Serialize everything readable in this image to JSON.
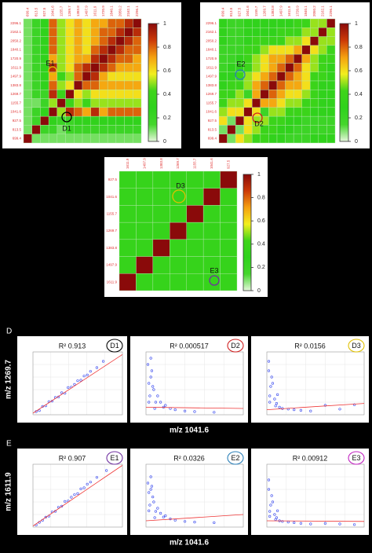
{
  "colorscale": [
    "#e6f7dc",
    "#44d62c",
    "#2fd21c",
    "#3ed41a",
    "#f2ef1e",
    "#f5a010",
    "#cc3a08",
    "#8a0a0a"
  ],
  "chart_data": [
    {
      "type": "heatmap",
      "row_labels": [
        "2296.1",
        "2162.1",
        "2050.2",
        "1840.1",
        "1720.9",
        "1611.9",
        "1497.9",
        "1383.8",
        "1269.7",
        "1155.7",
        "1041.6",
        "927.5",
        "813.5",
        "699.4"
      ],
      "col_labels": [
        "699.4",
        "813.5",
        "927.5",
        "1041.6",
        "1155.7",
        "1269.7",
        "1383.8",
        "1497.9",
        "1611.9",
        "1720.9",
        "1840.1",
        "2050.2",
        "2162.1",
        "2296.1"
      ],
      "values": [
        [
          0.1,
          0.2,
          0.3,
          0.8,
          0.5,
          0.6,
          0.7,
          0.6,
          0.7,
          0.7,
          0.8,
          0.8,
          0.9,
          1
        ],
        [
          0.1,
          0.2,
          0.3,
          0.8,
          0.5,
          0.6,
          0.7,
          0.6,
          0.7,
          0.8,
          0.8,
          0.9,
          1,
          0.9
        ],
        [
          0.1,
          0.2,
          0.3,
          0.8,
          0.5,
          0.6,
          0.7,
          0.6,
          0.7,
          0.8,
          0.9,
          1,
          0.9,
          0.8
        ],
        [
          0.1,
          0.2,
          0.3,
          0.8,
          0.5,
          0.6,
          0.7,
          0.6,
          0.8,
          0.9,
          1,
          0.9,
          0.8,
          0.8
        ],
        [
          0.1,
          0.2,
          0.3,
          0.7,
          0.5,
          0.6,
          0.7,
          0.7,
          0.9,
          1,
          0.9,
          0.8,
          0.8,
          0.7
        ],
        [
          0.1,
          0.2,
          0.3,
          0.9,
          0.5,
          0.6,
          0.8,
          0.9,
          1,
          0.9,
          0.8,
          0.7,
          0.7,
          0.7
        ],
        [
          0.1,
          0.2,
          0.3,
          0.7,
          0.4,
          0.5,
          0.8,
          1,
          0.9,
          0.7,
          0.6,
          0.6,
          0.6,
          0.6
        ],
        [
          0.1,
          0.2,
          0.3,
          0.8,
          0.5,
          0.6,
          1,
          0.8,
          0.8,
          0.7,
          0.7,
          0.7,
          0.7,
          0.7
        ],
        [
          0.1,
          0.2,
          0.2,
          0.9,
          0.4,
          1,
          0.6,
          0.5,
          0.6,
          0.6,
          0.6,
          0.6,
          0.6,
          0.6
        ],
        [
          0.1,
          0.1,
          0.2,
          0.5,
          1,
          0.4,
          0.5,
          0.4,
          0.5,
          0.5,
          0.5,
          0.5,
          0.5,
          0.5
        ],
        [
          0.1,
          0.2,
          0.3,
          1,
          0.5,
          0.9,
          0.8,
          0.7,
          0.9,
          0.7,
          0.8,
          0.8,
          0.8,
          0.8
        ],
        [
          0.1,
          0.2,
          1,
          0.3,
          0.2,
          0.2,
          0.3,
          0.3,
          0.3,
          0.3,
          0.3,
          0.3,
          0.3,
          0.3
        ],
        [
          0.1,
          1,
          0.2,
          0.2,
          0.1,
          0.2,
          0.2,
          0.2,
          0.2,
          0.2,
          0.2,
          0.2,
          0.2,
          0.2
        ],
        [
          1,
          0.1,
          0.1,
          0.1,
          0.1,
          0.1,
          0.1,
          0.1,
          0.1,
          0.1,
          0.1,
          0.1,
          0.1,
          0.1
        ]
      ],
      "zlim": [
        0,
        1
      ],
      "colorbar_ticks": [
        0,
        0.2,
        0.4,
        0.6,
        0.8,
        1
      ],
      "annotations": [
        {
          "text": "E1",
          "color": "#e0c000"
        },
        {
          "text": "D1",
          "color": "#000000"
        }
      ]
    },
    {
      "type": "heatmap",
      "row_labels": [
        "2296.1",
        "2162.1",
        "2050.2",
        "1840.1",
        "1720.9",
        "1611.9",
        "1497.9",
        "1383.8",
        "1269.7",
        "1155.7",
        "1041.6",
        "927.5",
        "813.5",
        "699.4"
      ],
      "col_labels": [
        "699.4",
        "813.5",
        "927.5",
        "1041.6",
        "1155.7",
        "1269.7",
        "1383.8",
        "1497.9",
        "1611.9",
        "1720.9",
        "1840.1",
        "2050.2",
        "2162.1",
        "2296.1"
      ],
      "values": [
        [
          0.3,
          0.2,
          0.2,
          0.3,
          0.3,
          0.3,
          0.3,
          0.3,
          0.3,
          0.4,
          0.4,
          0.5,
          0.5,
          1
        ],
        [
          0.3,
          0.2,
          0.2,
          0.3,
          0.3,
          0.3,
          0.3,
          0.4,
          0.4,
          0.4,
          0.5,
          0.5,
          1,
          0.5
        ],
        [
          0.3,
          0.2,
          0.2,
          0.3,
          0.4,
          0.4,
          0.4,
          0.4,
          0.5,
          0.5,
          0.6,
          1,
          0.5,
          0.5
        ],
        [
          0.2,
          0.2,
          0.2,
          0.4,
          0.4,
          0.5,
          0.6,
          0.6,
          0.6,
          0.7,
          1,
          0.6,
          0.5,
          0.4
        ],
        [
          0.2,
          0.2,
          0.3,
          0.4,
          0.5,
          0.6,
          0.7,
          0.7,
          0.8,
          1,
          0.7,
          0.5,
          0.4,
          0.4
        ],
        [
          0.2,
          0.3,
          0.3,
          0.4,
          0.5,
          0.6,
          0.7,
          0.8,
          1,
          0.8,
          0.6,
          0.5,
          0.4,
          0.3
        ],
        [
          0.3,
          0.3,
          0.4,
          0.5,
          0.6,
          0.7,
          0.8,
          1,
          0.8,
          0.7,
          0.6,
          0.4,
          0.4,
          0.3
        ],
        [
          0.3,
          0.4,
          0.4,
          0.5,
          0.7,
          0.8,
          1,
          0.8,
          0.7,
          0.7,
          0.6,
          0.4,
          0.3,
          0.3
        ],
        [
          0.4,
          0.4,
          0.5,
          0.2,
          0.7,
          1,
          0.8,
          0.7,
          0.6,
          0.6,
          0.5,
          0.4,
          0.3,
          0.3
        ],
        [
          0.4,
          0.5,
          0.5,
          0.6,
          1,
          0.7,
          0.7,
          0.6,
          0.5,
          0.5,
          0.4,
          0.4,
          0.3,
          0.3
        ],
        [
          0.5,
          0.6,
          0.6,
          1,
          0.6,
          0.2,
          0.5,
          0.5,
          0.4,
          0.4,
          0.4,
          0.3,
          0.3,
          0.3
        ],
        [
          0.6,
          0.1,
          1,
          0.6,
          0.5,
          0.5,
          0.4,
          0.4,
          0.3,
          0.3,
          0.2,
          0.2,
          0.2,
          0.2
        ],
        [
          0.1,
          1,
          0.1,
          0.6,
          0.5,
          0.4,
          0.4,
          0.3,
          0.3,
          0.2,
          0.2,
          0.2,
          0.2,
          0.2
        ],
        [
          1,
          0.1,
          0.6,
          0.5,
          0.4,
          0.4,
          0.3,
          0.3,
          0.2,
          0.2,
          0.2,
          0.3,
          0.3,
          0.3
        ]
      ],
      "zlim": [
        0,
        1
      ],
      "colorbar_ticks": [
        0,
        0.2,
        0.4,
        0.6,
        0.8,
        1
      ],
      "annotations": [
        {
          "text": "E2",
          "color": "#2a7fb8"
        },
        {
          "text": "D2",
          "color": "#d02020"
        }
      ]
    },
    {
      "type": "heatmap",
      "row_labels": [
        "927.5",
        "1041.6",
        "1155.7",
        "1269.7",
        "1383.8",
        "1497.9",
        "1611.9"
      ],
      "col_labels": [
        "1611.9",
        "1497.9",
        "1383.8",
        "1269.7",
        "1155.7",
        "1041.6",
        "927.5"
      ],
      "values": [
        [
          0.35,
          0.35,
          0.35,
          0.35,
          0.35,
          0.35,
          1
        ],
        [
          0.35,
          0.35,
          0.35,
          0.35,
          0.35,
          1,
          0.35
        ],
        [
          0.35,
          0.35,
          0.35,
          0.35,
          1,
          0.35,
          0.35
        ],
        [
          0.35,
          0.35,
          0.35,
          1,
          0.35,
          0.35,
          0.35
        ],
        [
          0.35,
          0.35,
          1,
          0.35,
          0.35,
          0.35,
          0.35
        ],
        [
          0.35,
          1,
          0.35,
          0.35,
          0.35,
          0.35,
          0.35
        ],
        [
          1,
          0.35,
          0.35,
          0.35,
          0.35,
          0.35,
          0.35
        ]
      ],
      "zlim": [
        0,
        1
      ],
      "colorbar_ticks": [
        0,
        0.2,
        0.4,
        0.6,
        0.8,
        1
      ],
      "annotations": [
        {
          "text": "D3",
          "color": "#e0c000"
        },
        {
          "text": "E3",
          "color": "#7030a0"
        }
      ]
    },
    {
      "type": "scatter",
      "panel_label": "D",
      "ylabel": "m/z 1269.7",
      "annotation": "R² 0.913",
      "badge": "D1",
      "badge_color": "#000000",
      "x": [
        0.5,
        1,
        1.5,
        2,
        2.5,
        3,
        3.5,
        4,
        4.5,
        5,
        5.5,
        6,
        6.5,
        7,
        7.5,
        8,
        8.5,
        9,
        10,
        11
      ],
      "y": [
        0.6,
        0.8,
        1.6,
        1.7,
        2.5,
        2.6,
        3.3,
        3.4,
        4.2,
        4.1,
        5.2,
        5.3,
        5.8,
        6.5,
        6.6,
        7.4,
        7.6,
        8.3,
        9.0,
        10.2
      ],
      "fit_x": [
        0,
        14
      ],
      "fit_y": [
        0.3,
        11.5
      ],
      "xlim": [
        0,
        14
      ],
      "ylim": [
        0,
        12
      ],
      "color": "#3344ee",
      "fit_color": "#ee3333"
    },
    {
      "type": "scatter",
      "xlabel": "m/z 1041.6",
      "annotation": "R² 0.000517",
      "badge": "D2",
      "badge_color": "#d02020",
      "x": [
        0.2,
        0.3,
        0.5,
        0.4,
        0.8,
        1,
        1.2,
        0.6,
        1.5,
        2,
        0.3,
        0.9,
        2.5,
        3,
        4,
        0.5,
        1.8,
        5,
        7,
        0.7
      ],
      "y": [
        8,
        5,
        6,
        3,
        4,
        2,
        3,
        7,
        2,
        1.5,
        2,
        1,
        1,
        0.8,
        0.6,
        9,
        1.2,
        0.5,
        0.4,
        4.5
      ],
      "fit_x": [
        0,
        10
      ],
      "fit_y": [
        1.2,
        1.0
      ],
      "xlim": [
        0,
        10
      ],
      "ylim": [
        0,
        10
      ],
      "color": "#3344ee",
      "fit_color": "#ee3333"
    },
    {
      "type": "scatter",
      "annotation": "R² 0.0156",
      "badge": "D3",
      "badge_color": "#e0c000",
      "x": [
        0.2,
        0.4,
        0.3,
        0.6,
        0.8,
        1,
        1.3,
        0.5,
        1.6,
        2.2,
        0.3,
        0.9,
        2.8,
        3.5,
        4.5,
        0.2,
        6,
        7.5,
        9,
        1.1
      ],
      "y": [
        7,
        4.5,
        3,
        5,
        2.5,
        1.8,
        1.2,
        6,
        1,
        0.9,
        2,
        1.4,
        0.8,
        0.7,
        0.6,
        8.5,
        1.5,
        0.9,
        1.6,
        3.2
      ],
      "fit_x": [
        0,
        10
      ],
      "fit_y": [
        0.8,
        1.8
      ],
      "xlim": [
        0,
        10
      ],
      "ylim": [
        0,
        10
      ],
      "color": "#3344ee",
      "fit_color": "#ee3333"
    },
    {
      "type": "scatter",
      "panel_label": "E",
      "ylabel": "m/z 1611.9",
      "annotation": "R² 0.907",
      "badge": "E1",
      "badge_color": "#7030a0",
      "x": [
        0.5,
        1,
        1.5,
        2,
        2.5,
        3,
        3.5,
        4,
        4.5,
        5,
        5.5,
        6,
        6.5,
        7,
        7.5,
        8,
        8.5,
        9,
        10,
        11.5
      ],
      "y": [
        0.4,
        0.9,
        1.3,
        1.9,
        2.1,
        2.9,
        3.0,
        3.8,
        4.0,
        4.9,
        5.0,
        5.7,
        6.2,
        6.4,
        7.3,
        7.5,
        8.2,
        8.6,
        9.5,
        10.8
      ],
      "fit_x": [
        0,
        14
      ],
      "fit_y": [
        0.2,
        11.8
      ],
      "xlim": [
        0,
        14
      ],
      "ylim": [
        0,
        12
      ],
      "color": "#3344ee",
      "fit_color": "#ee3333"
    },
    {
      "type": "scatter",
      "xlabel": "m/z 1041.6",
      "annotation": "R² 0.0326",
      "badge": "E2",
      "badge_color": "#2a7fb8",
      "x": [
        0.2,
        0.3,
        0.5,
        0.4,
        0.8,
        1,
        1.2,
        0.6,
        1.5,
        2,
        0.3,
        0.9,
        2.5,
        3,
        4,
        0.5,
        1.8,
        5,
        7,
        0.7
      ],
      "y": [
        7,
        5.5,
        6,
        3.5,
        4,
        2.5,
        3,
        6.5,
        2.2,
        1.8,
        2.6,
        1.5,
        1.3,
        1.1,
        0.9,
        8,
        1.6,
        0.8,
        0.7,
        4.8
      ],
      "fit_x": [
        0,
        10
      ],
      "fit_y": [
        1.0,
        2.0
      ],
      "xlim": [
        0,
        10
      ],
      "ylim": [
        0,
        10
      ],
      "color": "#3344ee",
      "fit_color": "#ee3333"
    },
    {
      "type": "scatter",
      "annotation": "R² 0.00912",
      "badge": "E3",
      "badge_color": "#c020c0",
      "x": [
        0.2,
        0.4,
        0.3,
        0.6,
        0.8,
        1,
        1.3,
        0.5,
        1.6,
        2.2,
        0.3,
        0.9,
        2.8,
        3.5,
        4.5,
        0.2,
        6,
        7.5,
        9,
        1.1
      ],
      "y": [
        6,
        3.5,
        2.5,
        4,
        2,
        1.5,
        1,
        5,
        0.9,
        0.8,
        1.7,
        1.2,
        0.7,
        0.6,
        0.5,
        7.5,
        0.6,
        0.5,
        0.4,
        2.6
      ],
      "fit_x": [
        0,
        10
      ],
      "fit_y": [
        1.0,
        0.9
      ],
      "xlim": [
        0,
        10
      ],
      "ylim": [
        0,
        10
      ],
      "color": "#3344ee",
      "fit_color": "#ee3333"
    }
  ]
}
